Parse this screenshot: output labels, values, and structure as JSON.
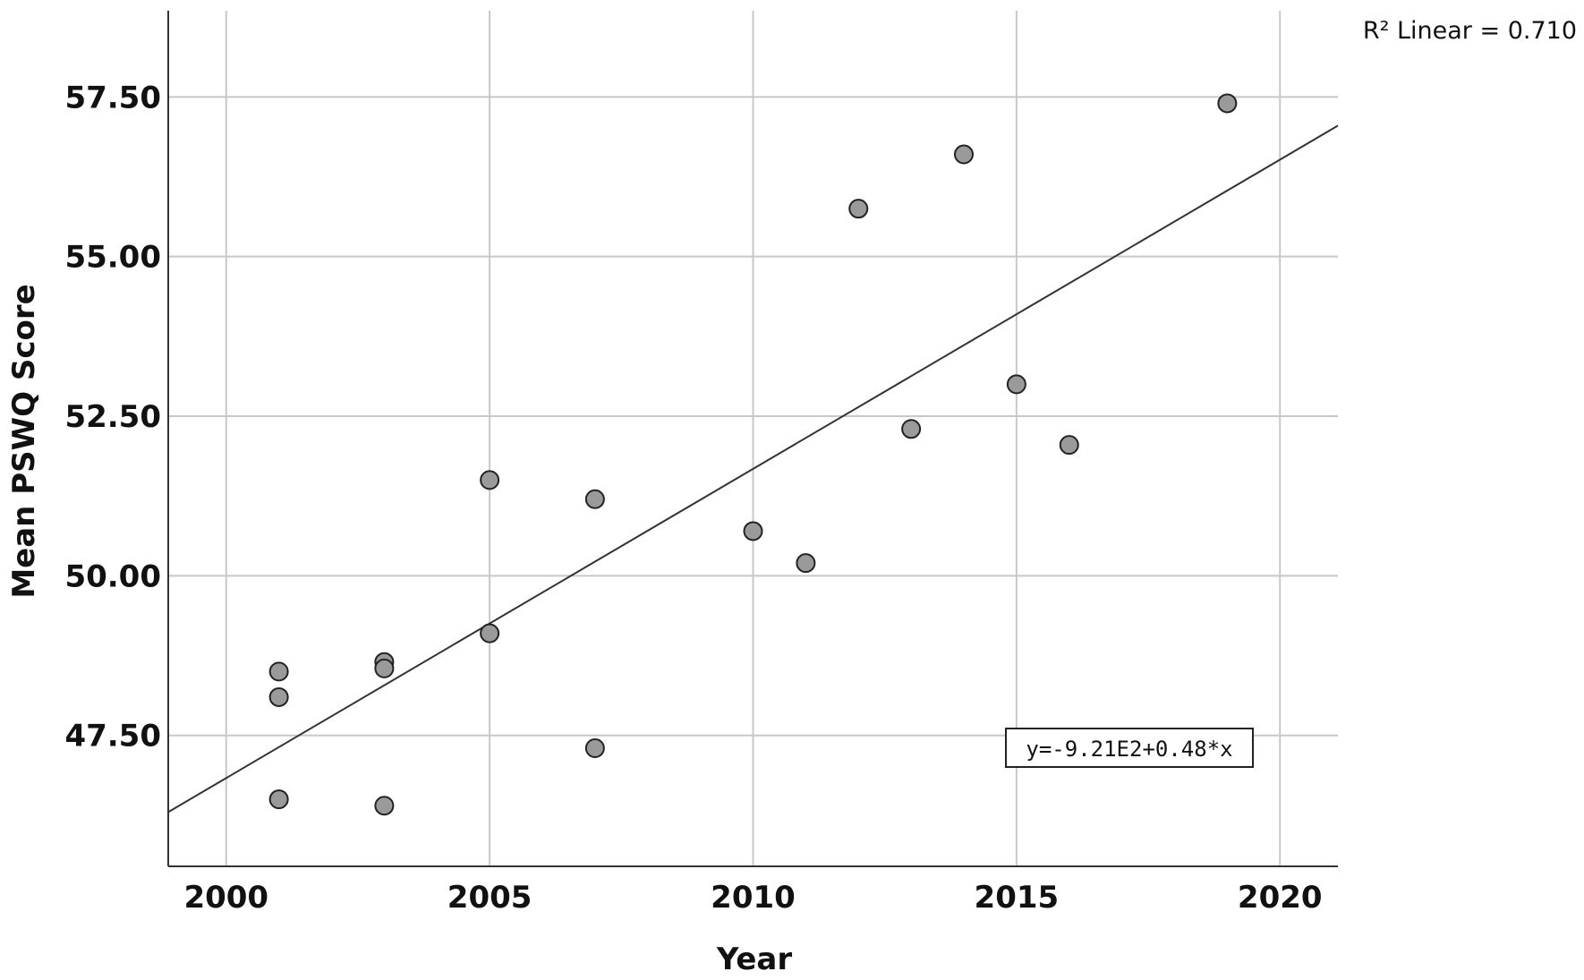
{
  "chart_data": {
    "type": "scatter",
    "title": "",
    "xlabel": "Year",
    "ylabel": "Mean PSWQ Score",
    "xlim": [
      1998.9,
      2021.1
    ],
    "ylim": [
      45.45,
      58.85
    ],
    "x_ticks": [
      2000,
      2005,
      2010,
      2015,
      2020
    ],
    "x_tick_labels": [
      "2000",
      "2005",
      "2010",
      "2015",
      "2020"
    ],
    "y_ticks": [
      47.5,
      50.0,
      52.5,
      55.0,
      57.5
    ],
    "y_tick_labels": [
      "47.50",
      "50.00",
      "52.50",
      "55.00",
      "57.50"
    ],
    "grid": true,
    "points": [
      {
        "x": 2001,
        "y": 48.5
      },
      {
        "x": 2001,
        "y": 48.1
      },
      {
        "x": 2001,
        "y": 46.5
      },
      {
        "x": 2003,
        "y": 48.65
      },
      {
        "x": 2003,
        "y": 48.55
      },
      {
        "x": 2003,
        "y": 46.4
      },
      {
        "x": 2005,
        "y": 51.5
      },
      {
        "x": 2005,
        "y": 49.1
      },
      {
        "x": 2007,
        "y": 51.2
      },
      {
        "x": 2007,
        "y": 47.3
      },
      {
        "x": 2010,
        "y": 50.7
      },
      {
        "x": 2011,
        "y": 50.2
      },
      {
        "x": 2012,
        "y": 55.75
      },
      {
        "x": 2013,
        "y": 52.3
      },
      {
        "x": 2014,
        "y": 56.6
      },
      {
        "x": 2015,
        "y": 53.0
      },
      {
        "x": 2016,
        "y": 52.05
      },
      {
        "x": 2019,
        "y": 57.4
      }
    ],
    "fit_line": {
      "type": "linear",
      "x": [
        1998.9,
        2021.1
      ],
      "y": [
        46.3,
        57.05
      ],
      "equation": "y=-9.21E2+0.48*x"
    },
    "r2_label": "R² Linear = 0.710"
  }
}
